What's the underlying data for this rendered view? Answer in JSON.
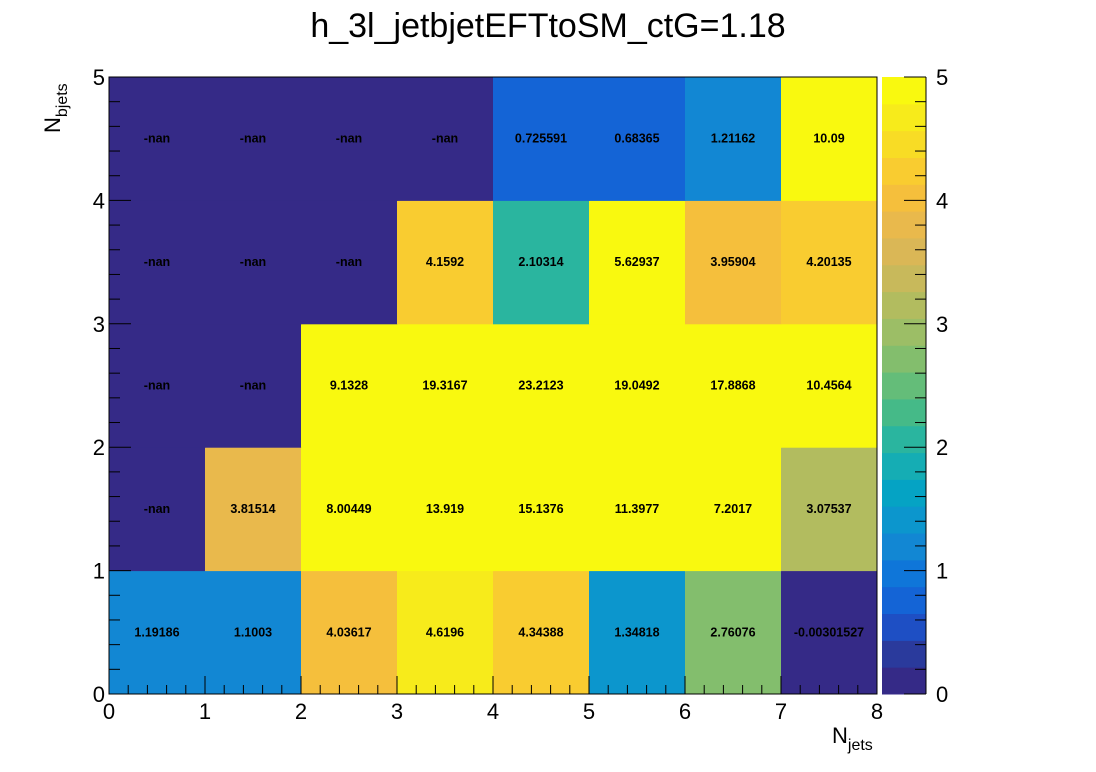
{
  "chart_data": {
    "type": "heatmap",
    "title": "h_3l_jetbjetEFTtoSM_ctG=1.18",
    "xlabel": "N",
    "xlabel_sub": "jets",
    "ylabel": "N",
    "ylabel_sub": "bjets",
    "xlim": [
      0,
      8
    ],
    "ylim": [
      0,
      5
    ],
    "xticks": [
      "0",
      "1",
      "2",
      "3",
      "4",
      "5",
      "6",
      "7",
      "8"
    ],
    "yticks": [
      "0",
      "1",
      "2",
      "3",
      "4",
      "5"
    ],
    "zlim": [
      0,
      5
    ],
    "zticks": [
      "0",
      "1",
      "2",
      "3",
      "4",
      "5"
    ],
    "rows": [
      {
        "y": 0,
        "values": [
          1.19186,
          1.1003,
          4.03617,
          4.6196,
          4.34388,
          1.34818,
          2.76076,
          -0.00301527
        ],
        "labels": [
          "1.19186",
          "1.1003",
          "4.03617",
          "4.6196",
          "4.34388",
          "1.34818",
          "2.76076",
          "-0.00301527"
        ]
      },
      {
        "y": 1,
        "values": [
          null,
          3.81514,
          8.00449,
          13.919,
          15.1376,
          11.3977,
          7.2017,
          3.07537
        ],
        "labels": [
          "-nan",
          "3.81514",
          "8.00449",
          "13.919",
          "15.1376",
          "11.3977",
          "7.2017",
          "3.07537"
        ]
      },
      {
        "y": 2,
        "values": [
          null,
          null,
          9.1328,
          19.3167,
          23.2123,
          19.0492,
          17.8868,
          10.4564
        ],
        "labels": [
          "-nan",
          "-nan",
          "9.1328",
          "19.3167",
          "23.2123",
          "19.0492",
          "17.8868",
          "10.4564"
        ]
      },
      {
        "y": 3,
        "values": [
          null,
          null,
          null,
          4.1592,
          2.10314,
          5.62937,
          3.95904,
          4.20135
        ],
        "labels": [
          "-nan",
          "-nan",
          "-nan",
          "4.1592",
          "2.10314",
          "5.62937",
          "3.95904",
          "4.20135"
        ]
      },
      {
        "y": 4,
        "values": [
          null,
          null,
          null,
          null,
          0.725591,
          0.68365,
          1.21162,
          10.09
        ],
        "labels": [
          "-nan",
          "-nan",
          "-nan",
          "-nan",
          "0.725591",
          "0.68365",
          "1.21162",
          "10.09"
        ]
      }
    ],
    "palette": [
      "#352a87",
      "#2a3a9c",
      "#1e4fc4",
      "#1464d6",
      "#0f76d9",
      "#1287d3",
      "#0c96cd",
      "#05a3c4",
      "#15adb4",
      "#2ab59f",
      "#45ba88",
      "#64bd79",
      "#83be6d",
      "#9cbe66",
      "#b2bc5f",
      "#c8b95b",
      "#dab756",
      "#e9b94c",
      "#f5bf3c",
      "#f9cc30",
      "#f8dc25",
      "#f7eb1b",
      "#f9f90f"
    ],
    "nan_color": "#352a87",
    "colors": {
      "above_max": "#f9f90f",
      "frame": "#000000"
    }
  }
}
